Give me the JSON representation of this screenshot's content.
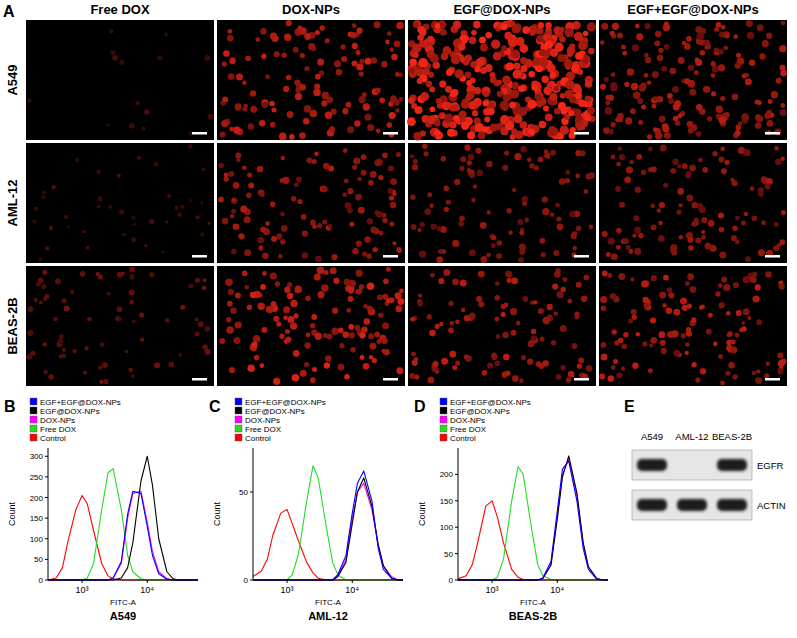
{
  "panel_a": {
    "label": "A",
    "columns": [
      "Free DOX",
      "DOX-NPs",
      "EGF@DOX-NPs",
      "EGF+EGF@DOX-NPs"
    ],
    "rows": [
      "A549",
      "AML-12",
      "BEAS-2B"
    ]
  },
  "chart_data": [
    {
      "type": "line",
      "panel": "B",
      "title": "A549",
      "x_label": "FITC-A",
      "y_label": "Count",
      "log": "x",
      "legend": "top",
      "x": [
        300,
        400,
        500,
        600,
        800,
        1000,
        1200,
        1500,
        2000,
        2500,
        3000,
        4000,
        5000,
        6000,
        8000,
        10000,
        12000,
        15000,
        20000,
        25000,
        30000,
        40000,
        50000,
        60000
      ],
      "xlim": [
        300,
        60000
      ],
      "xticks": [
        {
          "value": 1000,
          "label": "10³"
        },
        {
          "value": 10000,
          "label": "10⁴"
        }
      ],
      "ylim": [
        0,
        320
      ],
      "yticks": [
        0,
        50,
        100,
        150,
        200,
        250,
        300
      ],
      "series": [
        {
          "name": "EGF+EGF@DOX-NPs",
          "color": "#0000ff",
          "values": [
            0,
            0,
            0,
            0,
            0,
            0,
            0,
            0,
            0,
            0,
            5,
            45,
            160,
            215,
            210,
            130,
            60,
            15,
            2,
            0,
            0,
            0,
            0,
            0
          ]
        },
        {
          "name": "EGF@DOX-NPs",
          "color": "#000000",
          "values": [
            0,
            0,
            0,
            0,
            0,
            0,
            0,
            0,
            0,
            0,
            0,
            5,
            30,
            90,
            240,
            300,
            230,
            100,
            20,
            3,
            0,
            0,
            0,
            0
          ]
        },
        {
          "name": "DOX-NPs",
          "color": "#ff00ff",
          "values": [
            0,
            0,
            0,
            0,
            0,
            0,
            0,
            0,
            0,
            0,
            5,
            40,
            150,
            210,
            215,
            140,
            70,
            20,
            3,
            0,
            0,
            0,
            0,
            0
          ]
        },
        {
          "name": "Free DOX",
          "color": "#22dd22",
          "values": [
            0,
            0,
            0,
            0,
            0,
            0,
            5,
            40,
            170,
            260,
            270,
            170,
            60,
            20,
            3,
            0,
            0,
            0,
            0,
            0,
            0,
            0,
            0,
            0
          ]
        },
        {
          "name": "Control",
          "color": "#ff0000",
          "values": [
            0,
            5,
            30,
            90,
            170,
            205,
            185,
            120,
            40,
            10,
            3,
            0,
            0,
            0,
            0,
            0,
            0,
            0,
            0,
            0,
            0,
            0,
            0,
            0
          ]
        }
      ]
    },
    {
      "type": "line",
      "panel": "C",
      "title": "AML-12",
      "x_label": "FITC-A",
      "y_label": "Count",
      "log": "x",
      "legend": "top",
      "x": [
        300,
        400,
        500,
        600,
        800,
        1000,
        1200,
        1500,
        2000,
        2500,
        3000,
        4000,
        5000,
        6000,
        8000,
        10000,
        12000,
        15000,
        20000,
        25000,
        30000,
        40000,
        50000,
        60000
      ],
      "xlim": [
        300,
        60000
      ],
      "xticks": [
        {
          "value": 1000,
          "label": "10³"
        },
        {
          "value": 10000,
          "label": "10⁴"
        }
      ],
      "ylim": [
        0,
        75
      ],
      "yticks": [
        0,
        50
      ],
      "series": [
        {
          "name": "EGF+EGF@DOX-NPs",
          "color": "#0000ff",
          "values": [
            0,
            0,
            0,
            0,
            0,
            0,
            0,
            0,
            0,
            0,
            0,
            0,
            0,
            3,
            14,
            38,
            55,
            62,
            45,
            18,
            6,
            1,
            0,
            0
          ]
        },
        {
          "name": "EGF@DOX-NPs",
          "color": "#000000",
          "values": [
            0,
            0,
            0,
            0,
            0,
            0,
            0,
            0,
            0,
            0,
            0,
            0,
            0,
            2,
            10,
            32,
            50,
            58,
            42,
            20,
            8,
            1,
            0,
            0
          ]
        },
        {
          "name": "DOX-NPs",
          "color": "#ff00ff",
          "values": [
            0,
            0,
            0,
            0,
            0,
            0,
            0,
            0,
            0,
            0,
            0,
            0,
            0,
            2,
            12,
            35,
            50,
            55,
            40,
            20,
            8,
            2,
            0,
            0
          ]
        },
        {
          "name": "Free DOX",
          "color": "#22dd22",
          "values": [
            0,
            0,
            0,
            0,
            0,
            0,
            3,
            15,
            45,
            65,
            58,
            30,
            10,
            3,
            0,
            0,
            0,
            0,
            0,
            0,
            0,
            0,
            0,
            0
          ]
        },
        {
          "name": "Control",
          "color": "#ff0000",
          "values": [
            2,
            5,
            12,
            25,
            38,
            40,
            32,
            22,
            10,
            4,
            1,
            0,
            0,
            0,
            0,
            0,
            0,
            0,
            0,
            0,
            0,
            0,
            0,
            0
          ]
        }
      ]
    },
    {
      "type": "line",
      "panel": "D",
      "title": "BEAS-2B",
      "x_label": "FITC-A",
      "y_label": "Count",
      "log": "x",
      "legend": "top",
      "x": [
        300,
        400,
        500,
        600,
        800,
        1000,
        1200,
        1500,
        2000,
        2500,
        3000,
        4000,
        5000,
        6000,
        8000,
        10000,
        12000,
        15000,
        20000,
        25000,
        30000,
        40000,
        50000,
        60000
      ],
      "xlim": [
        300,
        60000
      ],
      "xticks": [
        {
          "value": 1000,
          "label": "10³"
        },
        {
          "value": 10000,
          "label": "10⁴"
        }
      ],
      "ylim": [
        0,
        250
      ],
      "yticks": [
        0,
        50,
        100,
        150,
        200
      ],
      "series": [
        {
          "name": "EGF+EGF@DOX-NPs",
          "color": "#0000ff",
          "values": [
            0,
            0,
            0,
            0,
            0,
            0,
            0,
            0,
            0,
            0,
            0,
            0,
            0,
            4,
            35,
            130,
            210,
            225,
            150,
            60,
            20,
            2,
            0,
            0
          ]
        },
        {
          "name": "EGF@DOX-NPs",
          "color": "#000000",
          "values": [
            0,
            0,
            0,
            0,
            0,
            0,
            0,
            0,
            0,
            0,
            0,
            0,
            0,
            3,
            28,
            115,
            195,
            235,
            165,
            70,
            25,
            3,
            0,
            0
          ]
        },
        {
          "name": "DOX-NPs",
          "color": "#ff00ff",
          "values": [
            0,
            0,
            0,
            0,
            0,
            0,
            0,
            0,
            0,
            0,
            0,
            0,
            0,
            3,
            30,
            120,
            200,
            230,
            160,
            70,
            25,
            3,
            0,
            0
          ]
        },
        {
          "name": "Free DOX",
          "color": "#22dd22",
          "values": [
            0,
            0,
            0,
            0,
            0,
            0,
            5,
            40,
            150,
            215,
            200,
            100,
            30,
            8,
            1,
            0,
            0,
            0,
            0,
            0,
            0,
            0,
            0,
            0
          ]
        },
        {
          "name": "Control",
          "color": "#ff0000",
          "values": [
            2,
            8,
            30,
            70,
            140,
            150,
            120,
            70,
            20,
            5,
            1,
            0,
            0,
            0,
            0,
            0,
            0,
            0,
            0,
            0,
            0,
            0,
            0,
            0
          ]
        }
      ]
    }
  ],
  "panel_e": {
    "label": "E",
    "lanes": [
      "A549",
      "AML-12",
      "BEAS-2B"
    ],
    "bands": [
      "EGFR",
      "ACTIN"
    ]
  }
}
